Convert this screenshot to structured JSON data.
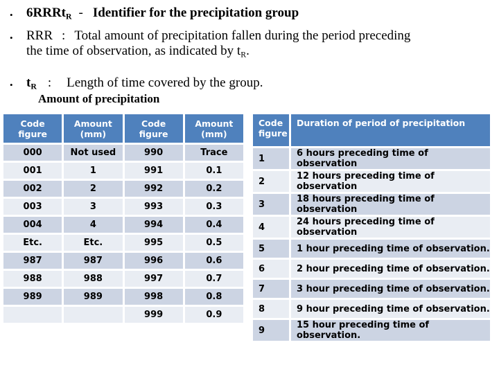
{
  "bullets": {
    "b1": {
      "term": "6RRRt",
      "term_sub": "R",
      "separator": "-",
      "description": "Identifier for the precipitation group"
    },
    "b2": {
      "term": "RRR",
      "colon": ":",
      "line1": "Total amount of precipitation fallen during the period preceding",
      "line2": "the time of observation, as indicated by t",
      "sub": "R",
      "period": "."
    },
    "b3": {
      "term": "t",
      "term_sub": "R",
      "colon": ":",
      "text": "Length of time covered by the group."
    }
  },
  "table_title": "Amount of precipitation",
  "left_table": {
    "headers": [
      {
        "line1": "Code",
        "line2": "figure"
      },
      {
        "line1": "Amount",
        "line2": "(mm)"
      },
      {
        "line1": "Code",
        "line2": "figure"
      },
      {
        "line1": "Amount",
        "line2": "(mm)"
      }
    ],
    "rows": [
      [
        "000",
        "Not used",
        "990",
        "Trace"
      ],
      [
        "001",
        "1",
        "991",
        "0.1"
      ],
      [
        "002",
        "2",
        "992",
        "0.2"
      ],
      [
        "003",
        "3",
        "993",
        "0.3"
      ],
      [
        "004",
        "4",
        "994",
        "0.4"
      ],
      [
        "Etc.",
        "Etc.",
        "995",
        "0.5"
      ],
      [
        "987",
        "987",
        "996",
        "0.6"
      ],
      [
        "988",
        "988",
        "997",
        "0.7"
      ],
      [
        "989",
        "989",
        "998",
        "0.8"
      ],
      [
        "",
        "",
        "999",
        "0.9"
      ]
    ]
  },
  "right_table": {
    "headers": [
      {
        "line1": "Code",
        "line2": "figure"
      },
      {
        "line1": "Duration of period of precipitation",
        "line2": ""
      }
    ],
    "rows": [
      [
        "1",
        "6 hours preceding time of observation"
      ],
      [
        "2",
        "12 hours preceding time of observation"
      ],
      [
        "3",
        "18 hours preceding time of observation"
      ],
      [
        "4",
        "24 hours preceding time of observation"
      ],
      [
        "5",
        "1 hour preceding time of observation."
      ],
      [
        "6",
        "2 hour preceding time of observation."
      ],
      [
        "7",
        "3 hour preceding time of observation."
      ],
      [
        "8",
        "9 hour preceding time of observation."
      ],
      [
        "9",
        "15 hour preceding time of observation."
      ]
    ]
  },
  "colors": {
    "header_bg": "#4f81bd",
    "band_dark": "#ccd4e3",
    "band_light": "#e9edf3",
    "header_text": "#ffffff",
    "body_text": "#000000"
  }
}
